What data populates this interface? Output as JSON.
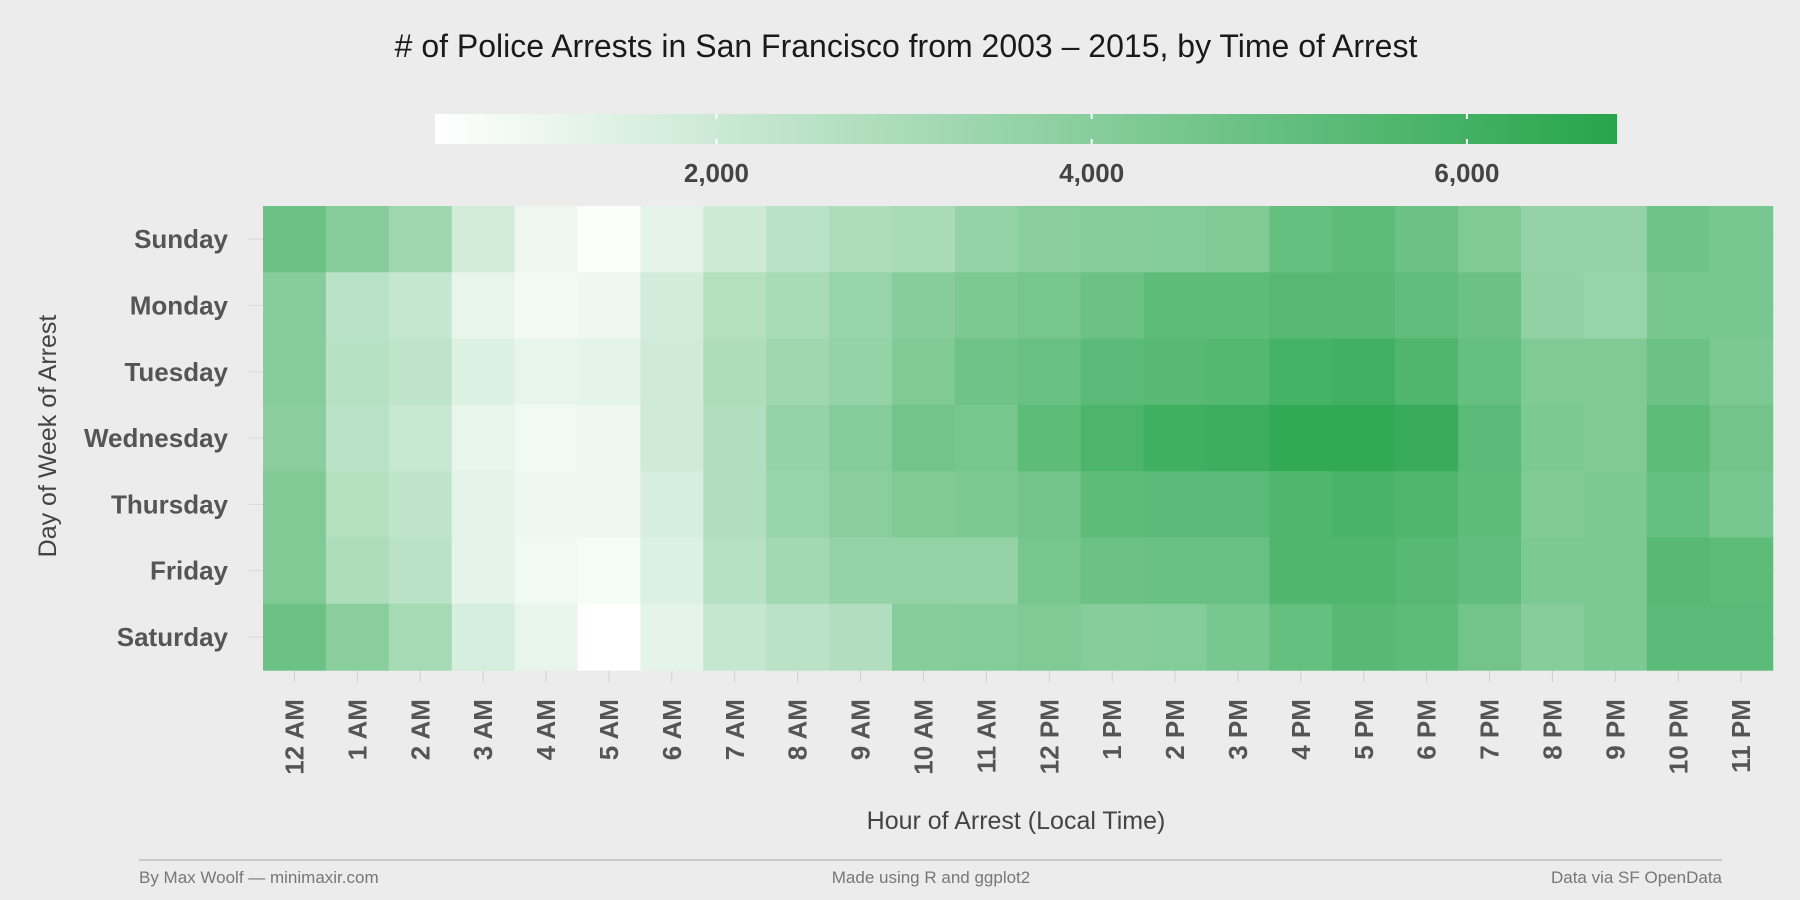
{
  "chart_data": {
    "type": "heatmap",
    "title": "# of Police Arrests in San Francisco from 2003 – 2015, by Time of Arrest",
    "xlabel": "Hour of Arrest (Local Time)",
    "ylabel": "Day of Week of Arrest",
    "x_categories": [
      "12 AM",
      "1 AM",
      "2 AM",
      "3 AM",
      "4 AM",
      "5 AM",
      "6 AM",
      "7 AM",
      "8 AM",
      "9 AM",
      "10 AM",
      "11 AM",
      "12 PM",
      "1 PM",
      "2 PM",
      "3 PM",
      "4 PM",
      "5 PM",
      "6 PM",
      "7 PM",
      "8 PM",
      "9 PM",
      "10 PM",
      "11 PM"
    ],
    "y_categories": [
      "Sunday",
      "Monday",
      "Tuesday",
      "Wednesday",
      "Thursday",
      "Friday",
      "Saturday"
    ],
    "values": [
      [
        4800,
        4000,
        3300,
        1800,
        1000,
        600,
        1300,
        2000,
        2500,
        2900,
        3000,
        3600,
        3900,
        4000,
        4100,
        4200,
        5000,
        5200,
        4800,
        4200,
        3600,
        3600,
        4700,
        4400
      ],
      [
        4000,
        2500,
        2200,
        1200,
        850,
        1000,
        1800,
        2700,
        3000,
        3500,
        4000,
        4300,
        4500,
        4800,
        5200,
        5200,
        5400,
        5400,
        5100,
        4800,
        3700,
        3500,
        4400,
        4400
      ],
      [
        4000,
        2600,
        2400,
        1500,
        1200,
        1300,
        1900,
        2900,
        3300,
        3600,
        4200,
        4700,
        4900,
        5300,
        5400,
        5500,
        5900,
        6000,
        5600,
        5000,
        4200,
        4200,
        4800,
        4300
      ],
      [
        3900,
        2500,
        2100,
        1200,
        900,
        1000,
        1900,
        2800,
        3600,
        4100,
        4600,
        4500,
        5200,
        5700,
        6100,
        6200,
        6500,
        6500,
        6300,
        5300,
        4300,
        4200,
        5200,
        4600
      ],
      [
        4200,
        2700,
        2400,
        1300,
        1000,
        1000,
        1700,
        2800,
        3500,
        3900,
        4200,
        4300,
        4600,
        5200,
        5300,
        5300,
        5600,
        5800,
        5600,
        5200,
        4200,
        4300,
        5000,
        4400
      ],
      [
        4200,
        2900,
        2500,
        1300,
        900,
        800,
        1500,
        2600,
        3200,
        3600,
        3600,
        3600,
        4500,
        4800,
        4900,
        4900,
        5600,
        5600,
        5400,
        5100,
        4300,
        4300,
        5400,
        5200
      ],
      [
        4800,
        3900,
        3100,
        1700,
        1200,
        500,
        1300,
        2200,
        2500,
        2800,
        4000,
        4100,
        4200,
        4000,
        4100,
        4400,
        5000,
        5400,
        5200,
        4600,
        4000,
        4300,
        5300,
        5300
      ]
    ],
    "color_scale": {
      "low": "#ffffff",
      "high": "#27a54c",
      "min": 500,
      "max": 6800
    },
    "legend": {
      "ticks": [
        2000,
        4000,
        6000
      ],
      "tick_labels": [
        "2,000",
        "4,000",
        "6,000"
      ],
      "placement": "top"
    },
    "grid": true
  },
  "footer": {
    "left": "By Max Woolf — minimaxir.com",
    "center": "Made using R and ggplot2",
    "right": "Data via SF OpenData"
  }
}
